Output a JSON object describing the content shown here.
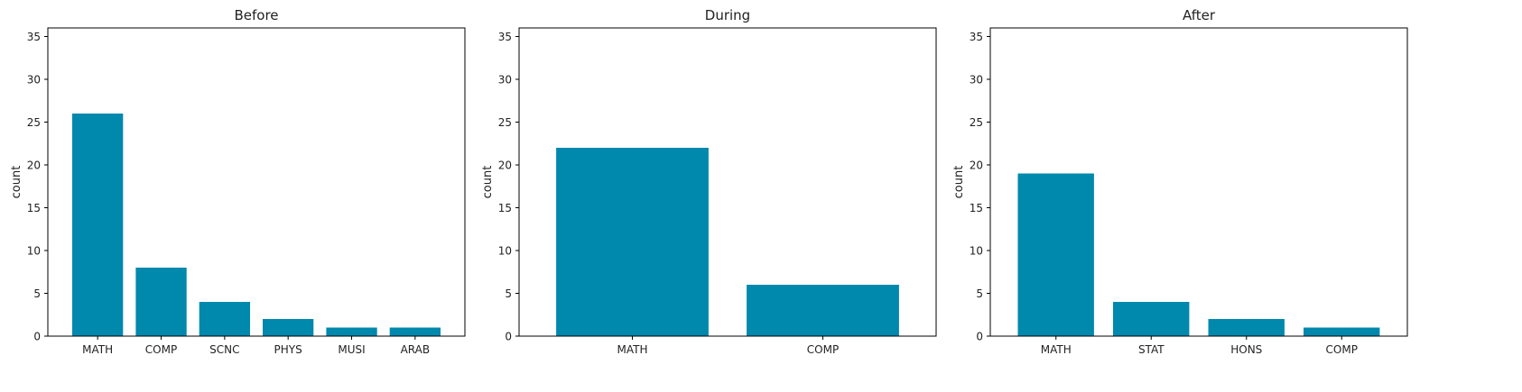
{
  "figure": {
    "bar_color": "#0088ad",
    "axis_color": "#000000",
    "background": "#ffffff"
  },
  "chart_data": [
    {
      "type": "bar",
      "title": "Before",
      "xlabel": "",
      "ylabel": "count",
      "categories": [
        "MATH",
        "COMP",
        "SCNC",
        "PHYS",
        "MUSI",
        "ARAB"
      ],
      "values": [
        26,
        8,
        4,
        2,
        1,
        1
      ],
      "ylim": [
        0,
        36
      ],
      "yticks": [
        0,
        5,
        10,
        15,
        20,
        25,
        30,
        35
      ],
      "grid": false
    },
    {
      "type": "bar",
      "title": "During",
      "xlabel": "",
      "ylabel": "count",
      "categories": [
        "MATH",
        "COMP"
      ],
      "values": [
        22,
        6
      ],
      "ylim": [
        0,
        36
      ],
      "yticks": [
        0,
        5,
        10,
        15,
        20,
        25,
        30,
        35
      ],
      "grid": false
    },
    {
      "type": "bar",
      "title": "After",
      "xlabel": "",
      "ylabel": "count",
      "categories": [
        "MATH",
        "STAT",
        "HONS",
        "COMP"
      ],
      "values": [
        19,
        4,
        2,
        1
      ],
      "ylim": [
        0,
        36
      ],
      "yticks": [
        0,
        5,
        10,
        15,
        20,
        25,
        30,
        35
      ],
      "grid": false
    }
  ]
}
